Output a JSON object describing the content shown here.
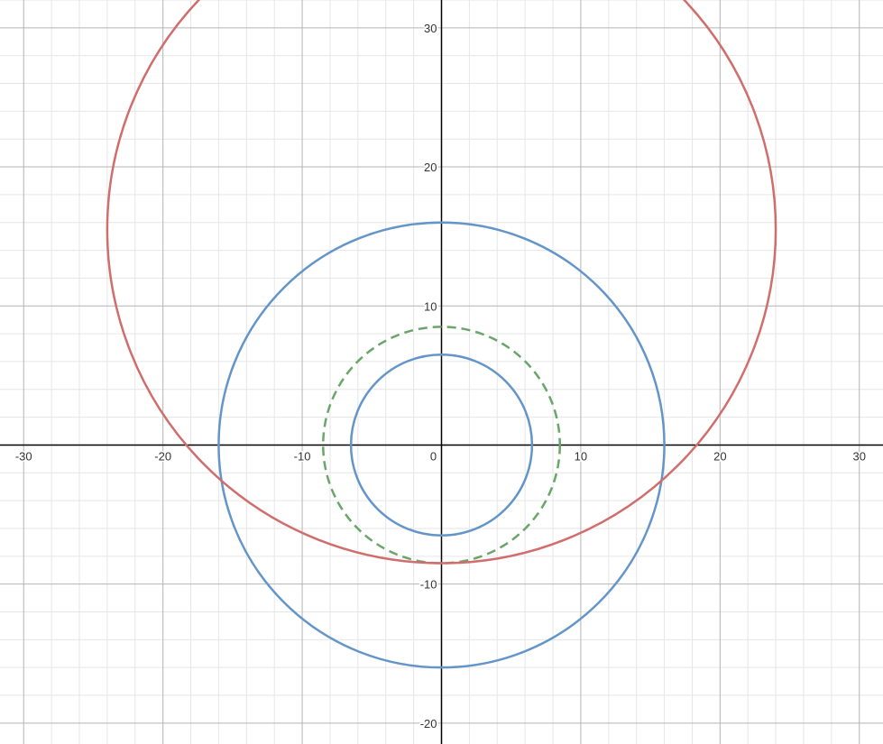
{
  "chart_data": {
    "type": "scatter",
    "title": "",
    "xlabel": "",
    "ylabel": "",
    "xlim": [
      -31.7,
      31.7
    ],
    "ylim": [
      -21.5,
      32.0
    ],
    "grid": true,
    "major_step": 10,
    "minor_step": 2,
    "x_ticks": [
      {
        "value": -30,
        "label": "-30"
      },
      {
        "value": -20,
        "label": "-20"
      },
      {
        "value": -10,
        "label": "-10"
      },
      {
        "value": 0,
        "label": "0"
      },
      {
        "value": 10,
        "label": "10"
      },
      {
        "value": 20,
        "label": "20"
      },
      {
        "value": 30,
        "label": "30"
      }
    ],
    "y_ticks": [
      {
        "value": -20,
        "label": "-20"
      },
      {
        "value": -10,
        "label": "-10"
      },
      {
        "value": 10,
        "label": "10"
      },
      {
        "value": 20,
        "label": "20"
      },
      {
        "value": 30,
        "label": "30"
      }
    ],
    "series": [
      {
        "shape": "circle",
        "center": [
          0,
          0
        ],
        "radius": 16,
        "color": "#6495c8",
        "style": "solid"
      },
      {
        "shape": "circle",
        "center": [
          0,
          0
        ],
        "radius": 6.5,
        "color": "#6495c8",
        "style": "solid"
      },
      {
        "shape": "circle",
        "center": [
          0,
          0
        ],
        "radius": 8.5,
        "color": "#6aa56a",
        "style": "dashed"
      },
      {
        "shape": "circle",
        "center": [
          0,
          15.5
        ],
        "radius": 24,
        "color": "#d06d6d",
        "style": "solid"
      }
    ]
  },
  "colors": {
    "background": "#ffffff",
    "minor_grid": "#e6e6e6",
    "major_grid": "#b4b4b4",
    "axis": "#000000",
    "tick_text": "#333333"
  }
}
